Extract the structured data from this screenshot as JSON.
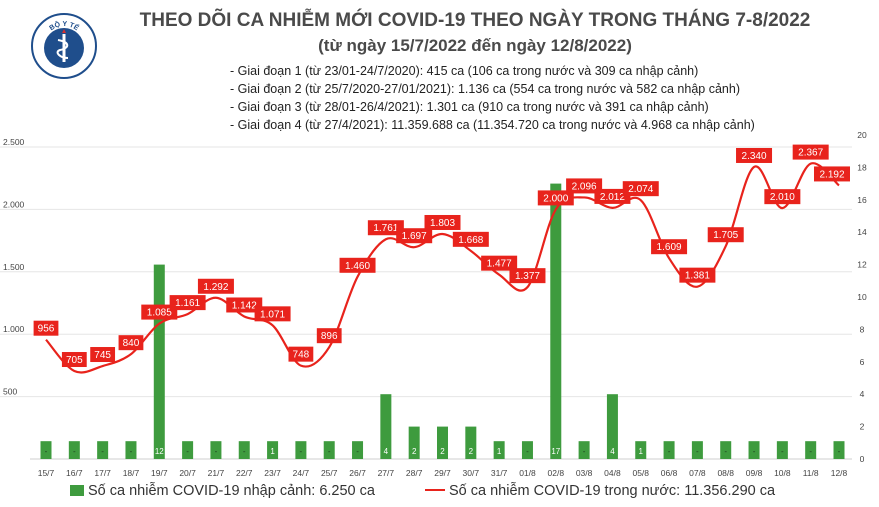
{
  "title": "THEO DÕI CA NHIỄM MỚI COVID-19 THEO NGÀY TRONG THÁNG 7-8/2022",
  "subtitle": "(từ ngày 15/7/2022 đến ngày 12/8/2022)",
  "logo_text": "BỘ Y TẾ",
  "notes": [
    "- Giai đoạn 1 (từ 23/01-24/7/2020): 415 ca (106 ca trong nước và 309 ca nhập cảnh)",
    "- Giai đoạn 2 (từ 25/7/2020-27/01/2021): 1.136 ca (554 ca trong nước và 582 ca nhập cảnh)",
    "- Giai đoạn 3 (từ 28/01-26/4/2021): 1.301 ca (910 ca trong nước và 391 ca nhập cảnh)",
    "- Giai đoạn 4 (từ 27/4/2021): 11.359.688 ca (11.354.720 ca trong nước và 4.968 ca nhập cảnh)"
  ],
  "legend": {
    "bar": "Số ca nhiễm COVID-19 nhập cảnh: 6.250 ca",
    "line": "Số ca nhiễm COVID-19 trong nước: 11.356.290 ca"
  },
  "colors": {
    "bar": "#3e9b3e",
    "line": "#e8231c",
    "label_bg": "#e8231c",
    "grid": "#e6e6e6"
  },
  "chart_data": {
    "type": "bar",
    "categories": [
      "15/7",
      "16/7",
      "17/7",
      "18/7",
      "19/7",
      "20/7",
      "21/7",
      "22/7",
      "23/7",
      "24/7",
      "25/7",
      "26/7",
      "27/7",
      "28/7",
      "29/7",
      "30/7",
      "31/7",
      "01/8",
      "02/8",
      "03/8",
      "04/8",
      "05/8",
      "06/8",
      "07/8",
      "08/8",
      "09/8",
      "10/8",
      "11/8",
      "12/8"
    ],
    "series": [
      {
        "name": "Số ca nhiễm COVID-19 nhập cảnh: 6.250 ca",
        "type": "bar",
        "axis": "right",
        "values": [
          0,
          0,
          0,
          0,
          12,
          0,
          0,
          0,
          1,
          0,
          0,
          0,
          4,
          2,
          2,
          2,
          1,
          0,
          17,
          0,
          4,
          1,
          0,
          0,
          0,
          0,
          0,
          0,
          0
        ],
        "labels": [
          "-",
          "-",
          "-",
          "-",
          "12",
          "-",
          "-",
          "-",
          "1",
          "-",
          "-",
          "-",
          "4",
          "2",
          "2",
          "2",
          "1",
          "-",
          "17",
          "-",
          "4",
          "1",
          "-",
          "-",
          "-",
          "-",
          "-",
          "-",
          "-"
        ]
      },
      {
        "name": "Số ca nhiễm COVID-19 trong nước: 11.356.290 ca",
        "type": "line",
        "axis": "left",
        "values": [
          956,
          705,
          745,
          840,
          1085,
          1161,
          1292,
          1142,
          1071,
          748,
          896,
          1460,
          1761,
          1697,
          1803,
          1668,
          1477,
          1377,
          2000,
          2096,
          2012,
          2074,
          1609,
          1381,
          1705,
          2340,
          2010,
          2367,
          2192
        ],
        "labels": [
          "956",
          "705",
          "745",
          "840",
          "1.085",
          "1.161",
          "1.292",
          "1.142",
          "1.071",
          "748",
          "896",
          "1.460",
          "1.761",
          "1.697",
          "1.803",
          "1.668",
          "1.477",
          "1.377",
          "2.000",
          "2.096",
          "2.012",
          "2.074",
          "1.609",
          "1.381",
          "1.705",
          "2.340",
          "2.010",
          "2.367",
          "2.192"
        ]
      }
    ],
    "y_left": {
      "range": [
        0,
        2500
      ],
      "ticks": [
        500,
        1000,
        1500,
        2000,
        2500
      ],
      "tick_labels": [
        "500",
        "1.000",
        "1.500",
        "2.000",
        "2.500"
      ]
    },
    "y_right": {
      "range": [
        0,
        20
      ],
      "ticks": [
        0,
        2,
        4,
        6,
        8,
        10,
        12,
        14,
        16,
        18,
        20
      ],
      "tick_labels": [
        "0",
        "2",
        "4",
        "6",
        "8",
        "10",
        "12",
        "14",
        "16",
        "18",
        "20"
      ]
    },
    "grid": true,
    "legend_position": "bottom"
  }
}
